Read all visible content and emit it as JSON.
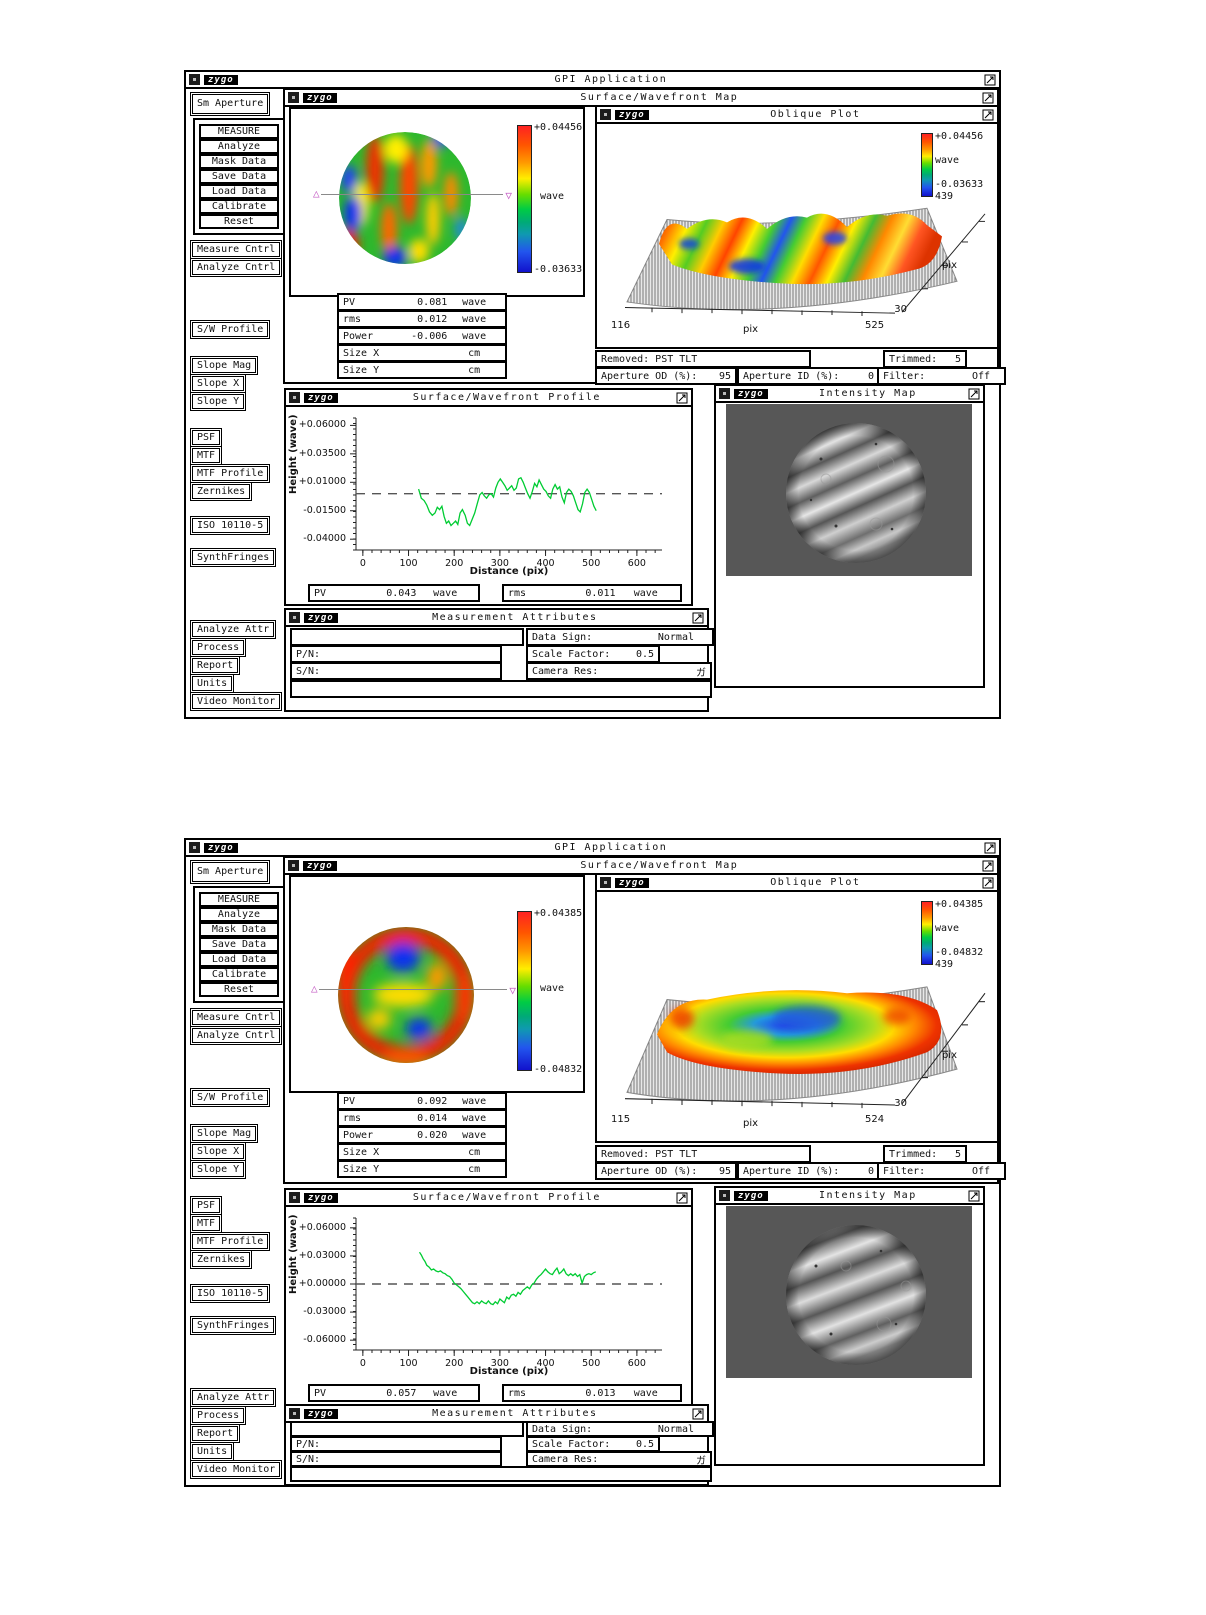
{
  "app": {
    "title": "GPI Application",
    "logo": "zygo"
  },
  "shared": {
    "windows": {
      "main": "GPI Application",
      "map": "Surface/Wavefront Map",
      "oblique": "Oblique Plot",
      "profile": "Surface/Wavefront Profile",
      "intensity": "Intensity Map",
      "attributes": "Measurement Attributes"
    },
    "sidebar": {
      "aperture": "Sm Aperture",
      "measure_group": [
        "MEASURE",
        "Analyze",
        "Mask Data",
        "Save Data",
        "Load Data",
        "Calibrate",
        "Reset"
      ],
      "cntrl": [
        "Measure Cntrl",
        "Analyze Cntrl"
      ],
      "sw_profile": "S/W Profile",
      "slopes": [
        "Slope Mag",
        "Slope X",
        "Slope Y"
      ],
      "analysis": [
        "PSF",
        "MTF",
        "MTF Profile",
        "Zernikes"
      ],
      "iso": "ISO 10110-5",
      "synth": "SynthFringes",
      "bottom": [
        "Analyze Attr",
        "Process",
        "Report",
        "Units",
        "Video Monitor"
      ]
    },
    "labels": {
      "pv": "PV",
      "rms": "rms",
      "power": "Power",
      "size_x": "Size X",
      "size_y": "Size Y",
      "wave": "wave",
      "cm": "cm",
      "pix": "pix",
      "removed": "Removed: PST TLT",
      "trimmed": "Trimmed:",
      "aperture_od": "Aperture OD (%):",
      "aperture_id": "Aperture ID (%):",
      "filter": "Filter:",
      "data_sign": "Data Sign:",
      "pn": "P/N:",
      "sn": "S/N:",
      "scale_factor": "Scale Factor:",
      "camera_res": "Camera Res:",
      "height_axis": "Height (wave)",
      "distance_axis": "Distance (pix)"
    },
    "values": {
      "trimmed": "5",
      "aperture_od": "95",
      "aperture_id": "0",
      "filter": "Off",
      "data_sign": "Normal",
      "scale_factor": "0.5",
      "camera_res": "ガ",
      "pn": "",
      "sn": ""
    },
    "colors": {
      "trace_green": "#00cc33",
      "marker_magenta": "#c45cc4",
      "cbar_top_red": "#ff2222",
      "cbar_bottom_blue": "#1111cc"
    }
  },
  "m1": {
    "colorbar": {
      "max": "+0.04456",
      "min": "-0.03633",
      "units": "wave",
      "count": "439"
    },
    "stats": {
      "pv": "0.081",
      "rms": "0.012",
      "power": "-0.006",
      "size_x": "",
      "size_y": ""
    },
    "oblique_axis": {
      "x_min": "116",
      "x_max": "525",
      "depth": "30"
    },
    "profile": {
      "pv": "0.043",
      "rms": "0.011"
    }
  },
  "m2": {
    "colorbar": {
      "max": "+0.04385",
      "min": "-0.04832",
      "units": "wave",
      "count": "439"
    },
    "stats": {
      "pv": "0.092",
      "rms": "0.014",
      "power": "0.020",
      "size_x": "",
      "size_y": ""
    },
    "oblique_axis": {
      "x_min": "115",
      "x_max": "524",
      "depth": "30"
    },
    "profile": {
      "pv": "0.057",
      "rms": "0.013"
    }
  },
  "chart_data": [
    {
      "type": "line",
      "title": "Surface/Wavefront Profile (measurement 1)",
      "xlabel": "Distance (pix)",
      "ylabel": "Height (wave)",
      "xlim": [
        -15,
        655
      ],
      "ylim": [
        -0.0495,
        0.0665
      ],
      "xticks": [
        0,
        100,
        200,
        300,
        400,
        500,
        600
      ],
      "ytick_values": [
        0.06,
        0.035,
        0.01,
        -0.015,
        -0.04
      ],
      "ytick_labels": [
        "+0.06000",
        "+0.03500",
        "+0.01000",
        "-0.01500",
        "-0.04000"
      ],
      "ref_line": 0.0,
      "grid": false,
      "legend": "none",
      "pv": 0.043,
      "rms": 0.011,
      "units": "wave",
      "points": [
        [
          122,
          0.004
        ],
        [
          128,
          -0.004
        ],
        [
          134,
          -0.006
        ],
        [
          140,
          -0.01
        ],
        [
          146,
          -0.016
        ],
        [
          152,
          -0.019
        ],
        [
          158,
          -0.017
        ],
        [
          163,
          -0.012
        ],
        [
          168,
          -0.014
        ],
        [
          173,
          -0.011
        ],
        [
          178,
          -0.02
        ],
        [
          183,
          -0.026
        ],
        [
          188,
          -0.024
        ],
        [
          193,
          -0.028
        ],
        [
          198,
          -0.026
        ],
        [
          203,
          -0.024
        ],
        [
          208,
          -0.027
        ],
        [
          213,
          -0.017
        ],
        [
          218,
          -0.014
        ],
        [
          224,
          -0.019
        ],
        [
          229,
          -0.026
        ],
        [
          234,
          -0.028
        ],
        [
          239,
          -0.023
        ],
        [
          245,
          -0.017
        ],
        [
          251,
          -0.008
        ],
        [
          256,
          -0.001
        ],
        [
          261,
          0.001
        ],
        [
          266,
          -0.002
        ],
        [
          271,
          -0.004
        ],
        [
          276,
          -0.001
        ],
        [
          281,
          0.0
        ],
        [
          286,
          -0.003
        ],
        [
          291,
          0.005
        ],
        [
          296,
          0.01
        ],
        [
          301,
          0.013
        ],
        [
          306,
          0.01
        ],
        [
          311,
          0.007
        ],
        [
          316,
          0.003
        ],
        [
          321,
          0.005
        ],
        [
          326,
          0.007
        ],
        [
          331,
          0.003
        ],
        [
          336,
          0.005
        ],
        [
          341,
          0.013
        ],
        [
          346,
          0.014
        ],
        [
          351,
          0.01
        ],
        [
          356,
          0.005
        ],
        [
          361,
          0.0
        ],
        [
          366,
          -0.004
        ],
        [
          371,
          0.002
        ],
        [
          376,
          0.009
        ],
        [
          381,
          0.006
        ],
        [
          386,
          0.012
        ],
        [
          391,
          0.008
        ],
        [
          396,
          0.004
        ],
        [
          401,
          0.002
        ],
        [
          406,
          -0.002
        ],
        [
          411,
          -0.004
        ],
        [
          416,
          0.004
        ],
        [
          421,
          0.008
        ],
        [
          426,
          0.004
        ],
        [
          431,
          0.006
        ],
        [
          436,
          -0.003
        ],
        [
          441,
          -0.008
        ],
        [
          446,
          0.001
        ],
        [
          451,
          0.004
        ],
        [
          456,
          0.002
        ],
        [
          461,
          -0.002
        ],
        [
          466,
          -0.008
        ],
        [
          471,
          -0.014
        ],
        [
          476,
          -0.016
        ],
        [
          481,
          -0.009
        ],
        [
          486,
          0.001
        ],
        [
          491,
          0.004
        ],
        [
          496,
          0.001
        ],
        [
          501,
          -0.005
        ],
        [
          506,
          -0.011
        ],
        [
          511,
          -0.015
        ]
      ]
    },
    {
      "type": "line",
      "title": "Surface/Wavefront Profile (measurement 2)",
      "xlabel": "Distance (pix)",
      "ylabel": "Height (wave)",
      "xlim": [
        -15,
        655
      ],
      "ylim": [
        -0.0705,
        0.0705
      ],
      "xticks": [
        0,
        100,
        200,
        300,
        400,
        500,
        600
      ],
      "ytick_values": [
        0.06,
        0.03,
        0.0,
        -0.03,
        -0.06
      ],
      "ytick_labels": [
        "+0.06000",
        "+0.03000",
        "+0.00000",
        "-0.03000",
        "-0.06000"
      ],
      "ref_line": 0.0,
      "grid": false,
      "legend": "none",
      "pv": 0.057,
      "rms": 0.013,
      "units": "wave",
      "points": [
        [
          124,
          0.034
        ],
        [
          128,
          0.031
        ],
        [
          132,
          0.027
        ],
        [
          136,
          0.024
        ],
        [
          140,
          0.02
        ],
        [
          145,
          0.018
        ],
        [
          150,
          0.015
        ],
        [
          155,
          0.016
        ],
        [
          160,
          0.014
        ],
        [
          165,
          0.013
        ],
        [
          170,
          0.014
        ],
        [
          175,
          0.012
        ],
        [
          180,
          0.011
        ],
        [
          185,
          0.009
        ],
        [
          190,
          0.008
        ],
        [
          195,
          0.005
        ],
        [
          200,
          0.001
        ],
        [
          205,
          -0.001
        ],
        [
          210,
          -0.003
        ],
        [
          215,
          -0.005
        ],
        [
          220,
          -0.008
        ],
        [
          225,
          -0.011
        ],
        [
          230,
          -0.014
        ],
        [
          235,
          -0.017
        ],
        [
          240,
          -0.02
        ],
        [
          245,
          -0.021
        ],
        [
          250,
          -0.019
        ],
        [
          255,
          -0.021
        ],
        [
          260,
          -0.018
        ],
        [
          265,
          -0.02
        ],
        [
          270,
          -0.021
        ],
        [
          275,
          -0.018
        ],
        [
          280,
          -0.021
        ],
        [
          285,
          -0.022
        ],
        [
          290,
          -0.019
        ],
        [
          295,
          -0.021
        ],
        [
          300,
          -0.016
        ],
        [
          305,
          -0.018
        ],
        [
          310,
          -0.02
        ],
        [
          315,
          -0.014
        ],
        [
          320,
          -0.016
        ],
        [
          325,
          -0.012
        ],
        [
          330,
          -0.011
        ],
        [
          335,
          -0.013
        ],
        [
          340,
          -0.009
        ],
        [
          345,
          -0.011
        ],
        [
          350,
          -0.007
        ],
        [
          355,
          -0.005
        ],
        [
          360,
          -0.003
        ],
        [
          365,
          -0.005
        ],
        [
          370,
          -0.001
        ],
        [
          375,
          0.001
        ],
        [
          380,
          0.005
        ],
        [
          385,
          0.008
        ],
        [
          390,
          0.01
        ],
        [
          395,
          0.013
        ],
        [
          400,
          0.016
        ],
        [
          405,
          0.013
        ],
        [
          410,
          0.011
        ],
        [
          415,
          0.01
        ],
        [
          420,
          0.014
        ],
        [
          425,
          0.017
        ],
        [
          430,
          0.011
        ],
        [
          435,
          0.013
        ],
        [
          440,
          0.016
        ],
        [
          445,
          0.011
        ],
        [
          450,
          0.009
        ],
        [
          455,
          0.011
        ],
        [
          460,
          0.009
        ],
        [
          465,
          0.011
        ],
        [
          470,
          0.008
        ],
        [
          475,
          0.01
        ],
        [
          480,
          0.001
        ],
        [
          485,
          0.008
        ],
        [
          490,
          0.01
        ],
        [
          495,
          0.011
        ],
        [
          500,
          0.01
        ],
        [
          505,
          0.012
        ],
        [
          510,
          0.013
        ]
      ]
    },
    {
      "type": "heatmap",
      "title": "Surface/Wavefront Map (measurement 1)",
      "colorbar_max": 0.04456,
      "colorbar_min": -0.03633,
      "units": "wave",
      "pv": 0.081,
      "rms": 0.012,
      "power": -0.006
    },
    {
      "type": "heatmap",
      "title": "Surface/Wavefront Map (measurement 2)",
      "colorbar_max": 0.04385,
      "colorbar_min": -0.04832,
      "units": "wave",
      "pv": 0.092,
      "rms": 0.014,
      "power": 0.02
    },
    {
      "type": "area",
      "title": "Oblique Plot (measurement 1)",
      "x_range_pix": [
        116,
        525
      ],
      "depth_pix": 30,
      "columns": 439,
      "colorbar_max": 0.04456,
      "colorbar_min": -0.03633,
      "units": "wave"
    },
    {
      "type": "area",
      "title": "Oblique Plot (measurement 2)",
      "x_range_pix": [
        115,
        524
      ],
      "depth_pix": 30,
      "columns": 439,
      "colorbar_max": 0.04385,
      "colorbar_min": -0.04832,
      "units": "wave"
    }
  ]
}
